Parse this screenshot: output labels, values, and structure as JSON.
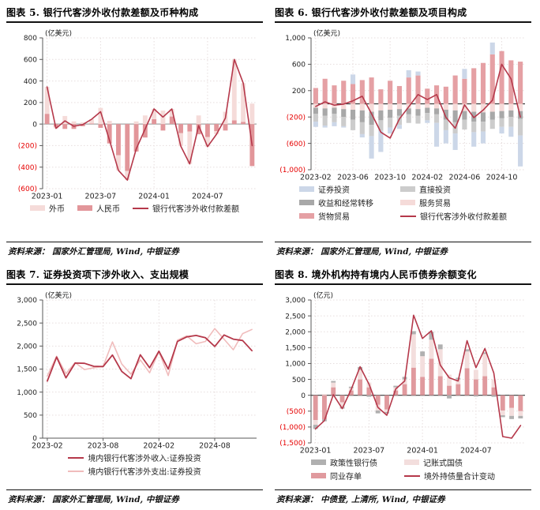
{
  "colors": {
    "negative_tick": "#e60000",
    "grid": "#e6dddd",
    "axis": "#595959",
    "foreign_ccy_bar": "#f5dbd9",
    "rmb_bar": "#e2969a",
    "main_line": "#b5384a",
    "securities_bar": "#ccd7e8",
    "direct_invest_bar": "#cccccc",
    "income_transfer_bar": "#a8a8a8",
    "service_trade_bar": "#f5dbd9",
    "goods_trade_bar": "#e5a0a4",
    "policy_bank_bond_bar": "#b0b0b0",
    "treasury_bond_bar": "#f3dedd",
    "ncd_bar": "#e09a9e",
    "income_line": "#b5384a",
    "expense_line": "#f0bcbc"
  },
  "chart_data": [
    {
      "id": "fig5",
      "type": "bar",
      "title": "图表 5. 银行代客涉外收付款差额及币种构成",
      "unit": "(亿美元)",
      "source": "资料来源： 国家外汇管理局, Wind,  中银证券",
      "ylim": [
        -600,
        800
      ],
      "ytick_step": 200,
      "zero_line_color": "#a6a6a6",
      "bottom_axis": false,
      "x": [
        "2023-01",
        "2023-02",
        "2023-03",
        "2023-04",
        "2023-05",
        "2023-06",
        "2023-07",
        "2023-08",
        "2023-09",
        "2023-10",
        "2023-11",
        "2023-12",
        "2024-01",
        "2024-02",
        "2024-03",
        "2024-04",
        "2024-05",
        "2024-06",
        "2024-07",
        "2024-08",
        "2024-09",
        "2024-10",
        "2024-11",
        "2024-12"
      ],
      "xticks": [
        "2023-01",
        "2023-07",
        "2024-01",
        "2024-07"
      ],
      "bar_series": [
        {
          "name": "人民币",
          "color": "#e2969a",
          "values": [
            95,
            -25,
            -45,
            -45,
            -20,
            5,
            -35,
            -180,
            -290,
            -435,
            -255,
            -125,
            45,
            -60,
            70,
            -85,
            -70,
            -95,
            -120,
            -65,
            -60,
            35,
            20,
            -390
          ]
        },
        {
          "name": "外币",
          "color": "#f5dbd9",
          "values": [
            250,
            -15,
            75,
            25,
            15,
            40,
            150,
            30,
            -140,
            -85,
            25,
            80,
            95,
            125,
            70,
            -120,
            -300,
            80,
            -90,
            -30,
            115,
            565,
            360,
            190
          ]
        }
      ],
      "line_series": [
        {
          "name": "银行代客涉外收付款差额",
          "color": "#b5384a",
          "width": 1.6,
          "values": [
            345,
            -40,
            30,
            -20,
            -5,
            45,
            115,
            -150,
            -430,
            -520,
            -230,
            -45,
            140,
            65,
            140,
            -205,
            -370,
            -15,
            -210,
            -95,
            55,
            600,
            380,
            -200
          ]
        }
      ],
      "legend": {
        "layout": "row",
        "items": [
          {
            "label": "外币",
            "color": "#f5dbd9",
            "shape": "bar"
          },
          {
            "label": "人民币",
            "color": "#e2969a",
            "shape": "bar"
          },
          {
            "label": "银行代客涉外收付款差额",
            "color": "#b5384a",
            "shape": "line"
          }
        ]
      }
    },
    {
      "id": "fig6",
      "type": "bar",
      "title": "图表 6. 银行代客涉外收付款差额及项目构成",
      "unit": "(亿美元)",
      "source": "资料来源： 国家外汇管理局, Wind,  中银证券",
      "ylim": [
        -1000,
        1000
      ],
      "ytick_step": 400,
      "zero_line_color": "#3a3a3a",
      "bottom_axis": false,
      "x": [
        "2023-02",
        "2023-03",
        "2023-04",
        "2023-05",
        "2023-06",
        "2023-07",
        "2023-08",
        "2023-09",
        "2023-10",
        "2023-11",
        "2023-12",
        "2024-01",
        "2024-02",
        "2024-03",
        "2024-04",
        "2024-05",
        "2024-06",
        "2024-07",
        "2024-08",
        "2024-09",
        "2024-10",
        "2024-11",
        "2024-12"
      ],
      "xticks": [
        "2023-02",
        "2023-06",
        "2023-10",
        "2024-02",
        "2024-06",
        "2024-10"
      ],
      "bar_series": [
        {
          "name": "货物贸易",
          "color": "#e5a0a4",
          "values": [
            240,
            380,
            280,
            350,
            300,
            360,
            400,
            220,
            350,
            270,
            400,
            430,
            230,
            280,
            260,
            430,
            380,
            540,
            620,
            750,
            800,
            660,
            640
          ]
        },
        {
          "name": "服务贸易",
          "color": "#f5dbd9",
          "values": [
            -60,
            -70,
            -60,
            -80,
            -90,
            -100,
            -120,
            -100,
            -90,
            -80,
            -70,
            -80,
            -60,
            -70,
            -90,
            -100,
            -110,
            -120,
            -130,
            -120,
            -110,
            -100,
            -110
          ]
        },
        {
          "name": "收益和经常转移",
          "color": "#a8a8a8",
          "values": [
            -90,
            -110,
            -90,
            -120,
            -150,
            -180,
            -200,
            -150,
            -120,
            -100,
            -90,
            -100,
            -80,
            -90,
            -150,
            -180,
            -130,
            -150,
            -140,
            -120,
            -110,
            -100,
            -120
          ]
        },
        {
          "name": "直接投资",
          "color": "#cccccc",
          "values": [
            -120,
            -150,
            -130,
            -140,
            -160,
            -180,
            -170,
            -160,
            -150,
            -140,
            -130,
            -120,
            -110,
            -130,
            -160,
            -170,
            -150,
            -160,
            -150,
            -140,
            -130,
            -150,
            -250
          ]
        },
        {
          "name": "证券投资",
          "color": "#ccd7e8",
          "values": [
            -80,
            -30,
            -60,
            -20,
            145,
            -50,
            -340,
            -320,
            -90,
            -60,
            110,
            60,
            -40,
            -360,
            -200,
            -250,
            150,
            -220,
            -180,
            180,
            -100,
            -150,
            -470
          ]
        }
      ],
      "line_series": [
        {
          "name": "银行代客涉外收付款差额",
          "color": "#b5384a",
          "width": 1.6,
          "values": [
            -40,
            30,
            -20,
            -5,
            45,
            115,
            -150,
            -430,
            -520,
            -230,
            -45,
            140,
            65,
            140,
            -205,
            -370,
            -15,
            -210,
            -95,
            55,
            600,
            380,
            -200
          ]
        }
      ],
      "legend": {
        "layout": "grid2",
        "items": [
          {
            "label": "证券投资",
            "color": "#ccd7e8",
            "shape": "bar"
          },
          {
            "label": "直接投资",
            "color": "#cccccc",
            "shape": "bar"
          },
          {
            "label": "收益和经常转移",
            "color": "#a8a8a8",
            "shape": "bar"
          },
          {
            "label": "服务贸易",
            "color": "#f5dbd9",
            "shape": "bar"
          },
          {
            "label": "货物贸易",
            "color": "#e5a0a4",
            "shape": "bar"
          },
          {
            "label": "银行代客涉外收付款差额",
            "color": "#b5384a",
            "shape": "line"
          }
        ]
      }
    },
    {
      "id": "fig7",
      "type": "line",
      "title": "图表 7. 证券投资项下涉外收入、支出规模",
      "unit": "(亿美元)",
      "source": "资料来源： 国家外汇管理局, Wind,  中银证券",
      "ylim": [
        0,
        3000
      ],
      "ytick_step": 500,
      "bottom_axis": true,
      "x": [
        "2023-02",
        "2023-03",
        "2023-04",
        "2023-05",
        "2023-06",
        "2023-07",
        "2023-08",
        "2023-09",
        "2023-10",
        "2023-11",
        "2023-12",
        "2024-01",
        "2024-02",
        "2024-03",
        "2024-04",
        "2024-05",
        "2024-06",
        "2024-07",
        "2024-08",
        "2024-09",
        "2024-10",
        "2024-11",
        "2024-12"
      ],
      "xticks": [
        "2023-02",
        "2023-08",
        "2024-02",
        "2024-08"
      ],
      "line_series": [
        {
          "name": "境内银行代客涉外支出:证券投资",
          "color": "#f0bcbc",
          "width": 1.6,
          "values": [
            1350,
            1780,
            1400,
            1640,
            1490,
            1530,
            1555,
            2090,
            1610,
            1390,
            1700,
            1420,
            1880,
            1360,
            2130,
            2220,
            2050,
            2100,
            2380,
            2150,
            1920,
            2270,
            2360
          ]
        },
        {
          "name": "境内银行代客涉外收入:证券投资",
          "color": "#b5384a",
          "width": 1.8,
          "values": [
            1240,
            1760,
            1310,
            1630,
            1625,
            1560,
            1555,
            1805,
            1450,
            1290,
            1810,
            1530,
            1890,
            1500,
            2100,
            2200,
            2230,
            2180,
            1990,
            2240,
            2150,
            2120,
            1900
          ]
        }
      ],
      "legend": {
        "layout": "col",
        "items": [
          {
            "label": "境内银行代客涉外收入:证券投资",
            "color": "#b5384a",
            "shape": "line"
          },
          {
            "label": "境内银行代客涉外支出:证券投资",
            "color": "#f0bcbc",
            "shape": "line"
          }
        ]
      }
    },
    {
      "id": "fig8",
      "type": "bar",
      "title": "图表 8. 境外机构持有境内人民币债券余额变化",
      "unit": "(亿元)",
      "source": "资料来源： 中债登, 上清所, Wind,  中银证券",
      "ylim": [
        -1500,
        3000
      ],
      "ytick_step": 500,
      "zero_line_color": "#3a3a3a",
      "bottom_axis": false,
      "x": [
        "2023-01",
        "2023-02",
        "2023-03",
        "2023-04",
        "2023-05",
        "2023-06",
        "2023-07",
        "2023-08",
        "2023-09",
        "2023-10",
        "2023-11",
        "2023-12",
        "2024-01",
        "2024-02",
        "2024-03",
        "2024-04",
        "2024-05",
        "2024-06",
        "2024-07",
        "2024-08",
        "2024-09",
        "2024-10",
        "2024-11",
        "2024-12"
      ],
      "xticks": [
        "2023-01",
        "2023-07",
        "2024-01",
        "2024-07"
      ],
      "bar_series": [
        {
          "name": "同业存单",
          "color": "#e09a9e",
          "values": [
            -780,
            -760,
            250,
            -220,
            150,
            500,
            250,
            -300,
            -450,
            150,
            350,
            870,
            580,
            1150,
            600,
            300,
            350,
            850,
            500,
            600,
            250,
            -480,
            -400,
            -500
          ]
        },
        {
          "name": "记账式国债",
          "color": "#f3dedd",
          "values": [
            -150,
            40,
            150,
            -150,
            80,
            300,
            150,
            -180,
            -80,
            100,
            150,
            1050,
            650,
            600,
            850,
            350,
            150,
            530,
            300,
            700,
            250,
            -150,
            -250,
            -150
          ]
        },
        {
          "name": "政策性银行债",
          "color": "#b0b0b0",
          "values": [
            -130,
            -60,
            50,
            -50,
            40,
            90,
            -50,
            -90,
            -40,
            50,
            80,
            100,
            150,
            250,
            150,
            -100,
            50,
            70,
            -40,
            50,
            -50,
            -60,
            -100,
            -80
          ]
        }
      ],
      "line_series": [
        {
          "name": "境外持债量合计变动",
          "color": "#b5384a",
          "width": 1.6,
          "values": [
            -1060,
            -800,
            20,
            -420,
            180,
            900,
            350,
            -380,
            -630,
            200,
            450,
            2520,
            1790,
            2030,
            950,
            550,
            450,
            1720,
            870,
            1470,
            700,
            -1300,
            -1350,
            -950
          ]
        }
      ],
      "legend": {
        "layout": "grid2",
        "items": [
          {
            "label": "政策性银行债",
            "color": "#b0b0b0",
            "shape": "bar"
          },
          {
            "label": "记账式国债",
            "color": "#f3dedd",
            "shape": "bar"
          },
          {
            "label": "同业存单",
            "color": "#e09a9e",
            "shape": "bar"
          },
          {
            "label": "境外持债量合计变动",
            "color": "#b5384a",
            "shape": "line"
          }
        ]
      }
    }
  ]
}
